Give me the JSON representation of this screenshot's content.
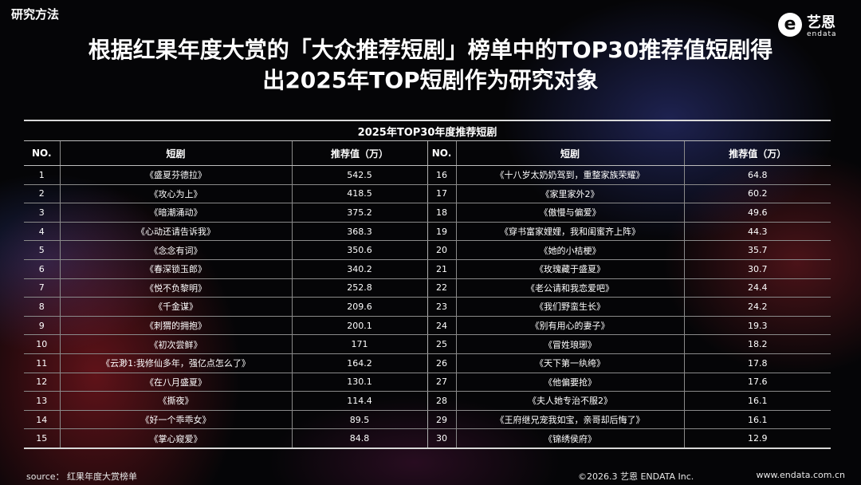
{
  "section_label": "研究方法",
  "brand": {
    "name_cn": "艺恩",
    "name_en": "endata",
    "mark": "e"
  },
  "title": {
    "line1": "根据红果年度大赏的「大众推荐短剧」榜单中的TOP30推荐值短剧得",
    "line2": "出2025年TOP短剧作为研究对象"
  },
  "table": {
    "caption": "2025年TOP30年度推荐短剧",
    "headers": {
      "no": "NO.",
      "drama": "短剧",
      "value": "推荐值（万）"
    },
    "left_rows": [
      {
        "no": "1",
        "name": "《盛夏芬德拉》",
        "value": "542.5"
      },
      {
        "no": "2",
        "name": "《攻心为上》",
        "value": "418.5"
      },
      {
        "no": "3",
        "name": "《暗潮涌动》",
        "value": "375.2"
      },
      {
        "no": "4",
        "name": "《心动还请告诉我》",
        "value": "368.3"
      },
      {
        "no": "5",
        "name": "《念念有词》",
        "value": "350.6"
      },
      {
        "no": "6",
        "name": "《春深锁玉郎》",
        "value": "340.2"
      },
      {
        "no": "7",
        "name": "《悦不负黎明》",
        "value": "252.8"
      },
      {
        "no": "8",
        "name": "《千金谋》",
        "value": "209.6"
      },
      {
        "no": "9",
        "name": "《刺猬的拥抱》",
        "value": "200.1"
      },
      {
        "no": "10",
        "name": "《初次尝鲜》",
        "value": "171"
      },
      {
        "no": "11",
        "name": "《云渺1:我修仙多年，强亿点怎么了》",
        "value": "164.2"
      },
      {
        "no": "12",
        "name": "《在八月盛夏》",
        "value": "130.1"
      },
      {
        "no": "13",
        "name": "《撕夜》",
        "value": "114.4"
      },
      {
        "no": "14",
        "name": "《好一个乖乖女》",
        "value": "89.5"
      },
      {
        "no": "15",
        "name": "《掌心窥爱》",
        "value": "84.8"
      }
    ],
    "right_rows": [
      {
        "no": "16",
        "name": "《十八岁太奶奶驾到，重整家族荣耀》",
        "value": "64.8"
      },
      {
        "no": "17",
        "name": "《家里家外2》",
        "value": "60.2"
      },
      {
        "no": "18",
        "name": "《傲慢与偏爱》",
        "value": "49.6"
      },
      {
        "no": "19",
        "name": "《穿书富家娌娌，我和闺蜜齐上阵》",
        "value": "44.3"
      },
      {
        "no": "20",
        "name": "《她的小桔梗》",
        "value": "35.7"
      },
      {
        "no": "21",
        "name": "《玫瑰藏于盛夏》",
        "value": "30.7"
      },
      {
        "no": "22",
        "name": "《老公请和我恋爱吧》",
        "value": "24.4"
      },
      {
        "no": "23",
        "name": "《我们野蛮生长》",
        "value": "24.2"
      },
      {
        "no": "24",
        "name": "《别有用心的妻子》",
        "value": "19.3"
      },
      {
        "no": "25",
        "name": "《冒姓琅琊》",
        "value": "18.2"
      },
      {
        "no": "26",
        "name": "《天下第一纨绔》",
        "value": "17.8"
      },
      {
        "no": "27",
        "name": "《他偏要抢》",
        "value": "17.6"
      },
      {
        "no": "28",
        "name": "《夫人她专治不服2》",
        "value": "16.1"
      },
      {
        "no": "29",
        "name": "《王府继兄宠我如宝，亲哥却后悔了》",
        "value": "16.1"
      },
      {
        "no": "30",
        "name": "《锦绣侯府》",
        "value": "12.9"
      }
    ]
  },
  "footer": {
    "source": "source： 红果年度大赏榜单",
    "copyright": "©2026.3  艺恩 ENDATA Inc.",
    "url": "www.endata.com.cn"
  }
}
